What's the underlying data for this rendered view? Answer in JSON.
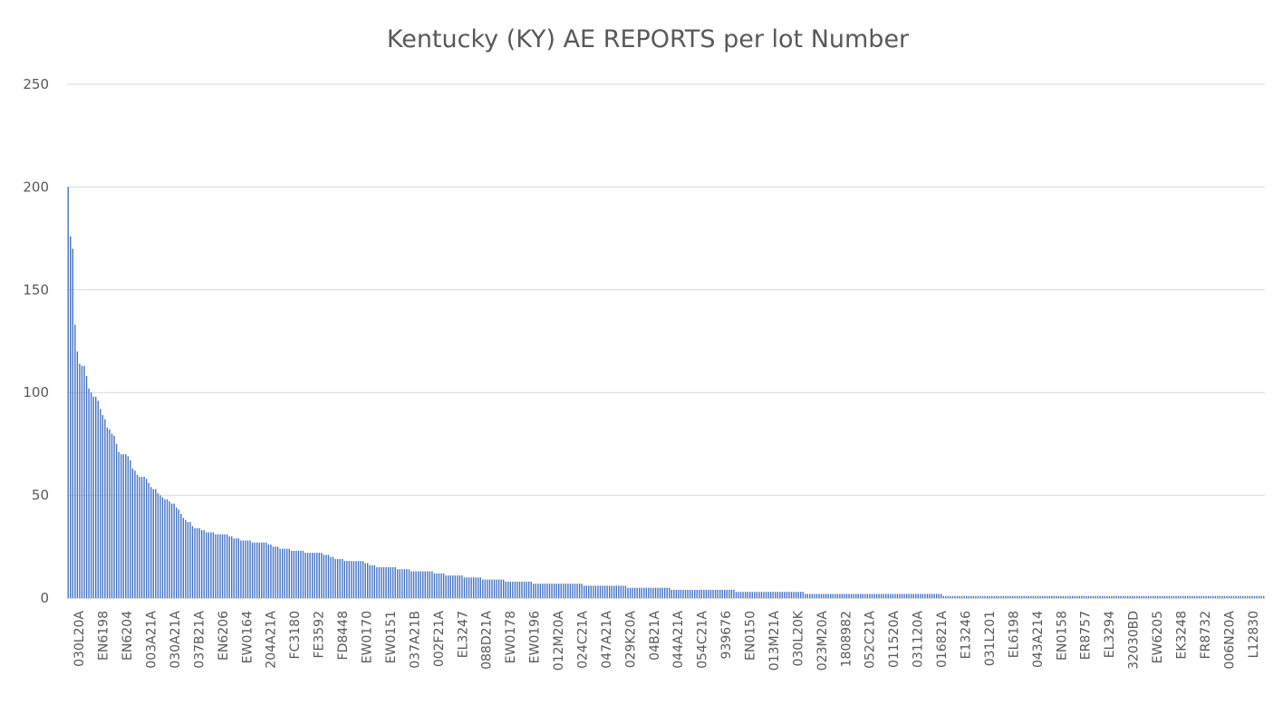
{
  "chart_data": {
    "type": "bar",
    "title": "Kentucky (KY) AE REPORTS per lot Number",
    "xlabel": "",
    "ylabel": "",
    "ylim": [
      0,
      250
    ],
    "yticks": [
      0,
      50,
      100,
      150,
      200,
      250
    ],
    "grid": true,
    "legend": "none",
    "bar_color": "#4472c4",
    "category_count": 520,
    "x_tick_labels": [
      "030L20A",
      "EN6198",
      "EN6204",
      "003A21A",
      "030A21A",
      "037B21A",
      "EN6206",
      "EW0164",
      "204A21A",
      "FC3180",
      "FE3592",
      "FD8448",
      "EW0170",
      "EW0151",
      "037A21B",
      "002F21A",
      "EL3247",
      "088D21A",
      "EW0178",
      "EW0196",
      "012M20A",
      "024C21A",
      "047A21A",
      "029K20A",
      "04B21A",
      "044A21A",
      "054C21A",
      "939676",
      "EN0150",
      "013M21A",
      "030L20K",
      "023M20A",
      "1808982",
      "052C21A",
      "011520A",
      "031120A",
      "016821A",
      "E13246",
      "031L201",
      "EL6198",
      "043A214",
      "EN0158",
      "ER8757",
      "EL3294",
      "32030BD",
      "EW6205",
      "EK3248",
      "FR8732",
      "006N20A",
      "L12830"
    ],
    "values_head": [
      200,
      176,
      170,
      133,
      120,
      114,
      113,
      113,
      108,
      102,
      100,
      98,
      98,
      96,
      92,
      89,
      87,
      83,
      82,
      80,
      79,
      75,
      71,
      70,
      70,
      70,
      69,
      67,
      63,
      62,
      60,
      59,
      59,
      59,
      58,
      56,
      54,
      53,
      53,
      51,
      50,
      49,
      48,
      48,
      47,
      46,
      46,
      44,
      43,
      41,
      39,
      38,
      37,
      37,
      35,
      34,
      34,
      34,
      33,
      33,
      32,
      32,
      32,
      32,
      31,
      31,
      31,
      31,
      31,
      31,
      30,
      30,
      29,
      29,
      29,
      28,
      28,
      28,
      28,
      28,
      27,
      27,
      27,
      27,
      27,
      27,
      27,
      26,
      26,
      25,
      25,
      25,
      24,
      24,
      24,
      24,
      24,
      23,
      23,
      23,
      23,
      23,
      23,
      22,
      22,
      22,
      22,
      22,
      22,
      22,
      22,
      21,
      21,
      21,
      20,
      20,
      19,
      19,
      19,
      19,
      18,
      18,
      18,
      18,
      18,
      18,
      18,
      18,
      18,
      17,
      17,
      16,
      16,
      16,
      15,
      15,
      15,
      15,
      15,
      15,
      15,
      15,
      15,
      14,
      14,
      14,
      14,
      14,
      14,
      13,
      13,
      13,
      13,
      13,
      13,
      13,
      13,
      13,
      13,
      12,
      12,
      12,
      12,
      12,
      11,
      11,
      11,
      11,
      11,
      11,
      11,
      11,
      10,
      10,
      10,
      10,
      10,
      10,
      10,
      10,
      9,
      9,
      9,
      9,
      9,
      9,
      9,
      9,
      9,
      9,
      8,
      8,
      8,
      8,
      8,
      8,
      8,
      8,
      8,
      8,
      8,
      8,
      7,
      7,
      7,
      7,
      7,
      7,
      7,
      7,
      7,
      7,
      7,
      7,
      7,
      7,
      7,
      7,
      7,
      7,
      7,
      7,
      7,
      7,
      6,
      6,
      6,
      6,
      6,
      6,
      6,
      6,
      6,
      6,
      6,
      6,
      6,
      6,
      6,
      6,
      6,
      6,
      6,
      5,
      5,
      5,
      5,
      5,
      5,
      5,
      5,
      5,
      5,
      5,
      5,
      5,
      5,
      5,
      5,
      5,
      5,
      5,
      4,
      4,
      4,
      4,
      4,
      4,
      4,
      4,
      4,
      4,
      4,
      4,
      4,
      4,
      4,
      4,
      4,
      4,
      4,
      4,
      4,
      4,
      4,
      4,
      4,
      4,
      4,
      4,
      3,
      3,
      3,
      3,
      3,
      3,
      3,
      3,
      3,
      3,
      3,
      3,
      3,
      3,
      3,
      3,
      3,
      3,
      3,
      3,
      3,
      3,
      3,
      3,
      3,
      3,
      3,
      3,
      3,
      3,
      2,
      2,
      2,
      2,
      2,
      2,
      2,
      2,
      2,
      2,
      2,
      2,
      2,
      2,
      2,
      2,
      2,
      2,
      2,
      2,
      2,
      2,
      2,
      2,
      2,
      2,
      2,
      2,
      2,
      2,
      2,
      2,
      2,
      2,
      2,
      2,
      2,
      2,
      2,
      2,
      2,
      2,
      2,
      2,
      2,
      2,
      2,
      2,
      2,
      2,
      2,
      2,
      2,
      2,
      2,
      2,
      2,
      2,
      2,
      2
    ],
    "values_tail_value": 1
  }
}
